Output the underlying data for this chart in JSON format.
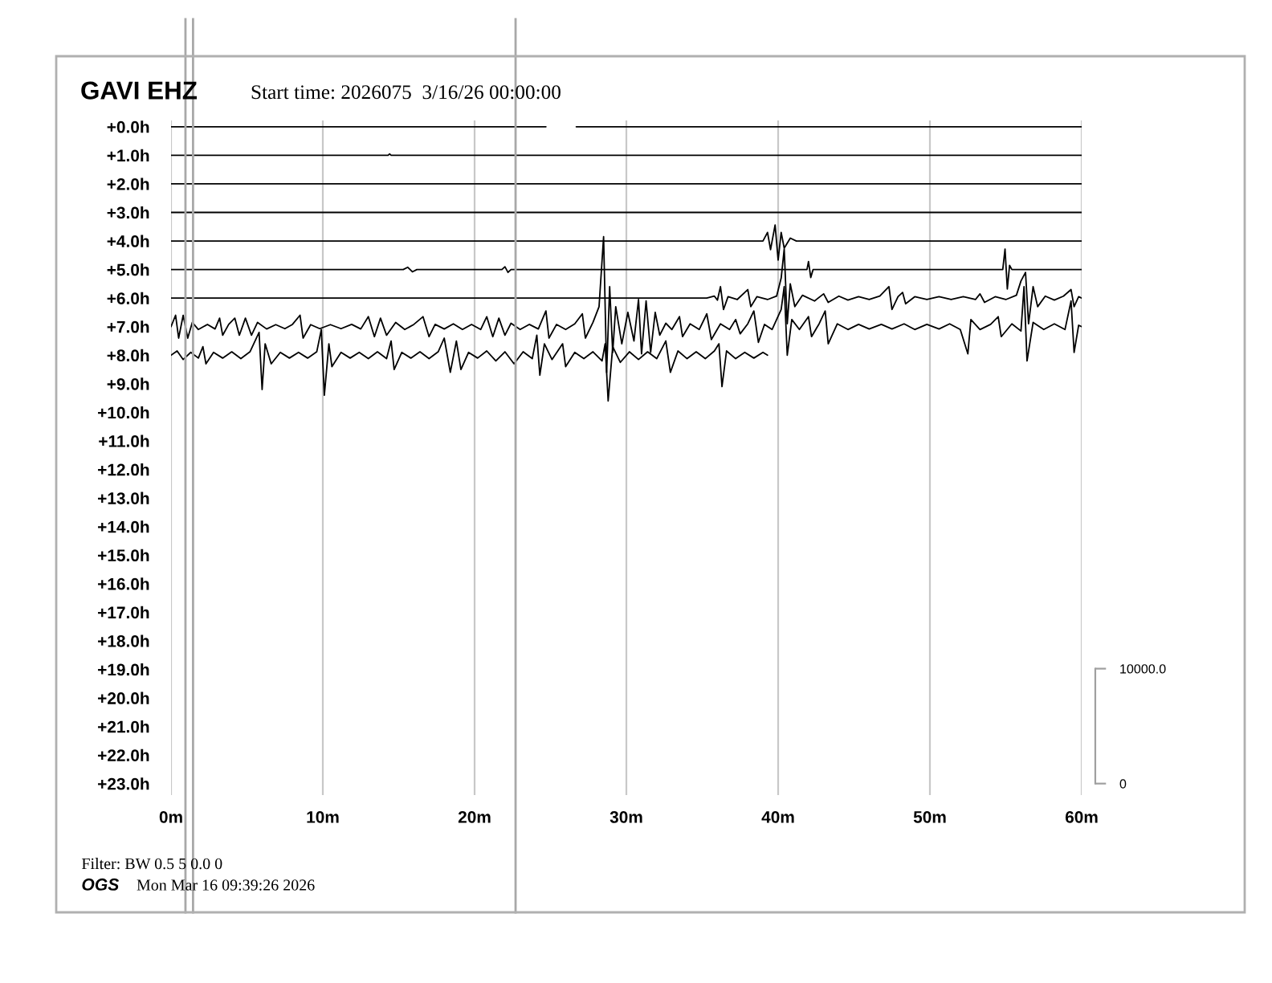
{
  "chart_data": {
    "type": "line",
    "title": "GAVI EHZ",
    "subtitle": "Start time: 2026075  3/16/26 00:00:00",
    "annotations": [
      "Filter: BW 0.5 5 0.0 0",
      "OGS",
      "Mon Mar 16 09:39:26 2026"
    ],
    "xlim": [
      0,
      60
    ],
    "xticks": [
      {
        "value": 0,
        "label": "0m"
      },
      {
        "value": 10,
        "label": "10m"
      },
      {
        "value": 20,
        "label": "20m"
      },
      {
        "value": 30,
        "label": "30m"
      },
      {
        "value": 40,
        "label": "40m"
      },
      {
        "value": 50,
        "label": "50m"
      },
      {
        "value": 60,
        "label": "60m"
      }
    ],
    "ylim": [
      23.4,
      -0.22
    ],
    "yticks": [
      {
        "value": 0,
        "label": "+0.0h"
      },
      {
        "value": 1,
        "label": "+1.0h"
      },
      {
        "value": 2,
        "label": "+2.0h"
      },
      {
        "value": 3,
        "label": "+3.0h"
      },
      {
        "value": 4,
        "label": "+4.0h"
      },
      {
        "value": 5,
        "label": "+5.0h"
      },
      {
        "value": 6,
        "label": "+6.0h"
      },
      {
        "value": 7,
        "label": "+7.0h"
      },
      {
        "value": 8,
        "label": "+8.0h"
      },
      {
        "value": 9,
        "label": "+9.0h"
      },
      {
        "value": 10,
        "label": "+10.0h"
      },
      {
        "value": 11,
        "label": "+11.0h"
      },
      {
        "value": 12,
        "label": "+12.0h"
      },
      {
        "value": 13,
        "label": "+13.0h"
      },
      {
        "value": 14,
        "label": "+14.0h"
      },
      {
        "value": 15,
        "label": "+15.0h"
      },
      {
        "value": 16,
        "label": "+16.0h"
      },
      {
        "value": 17,
        "label": "+17.0h"
      },
      {
        "value": 18,
        "label": "+18.0h"
      },
      {
        "value": 19,
        "label": "+19.0h"
      },
      {
        "value": 20,
        "label": "+20.0h"
      },
      {
        "value": 21,
        "label": "+21.0h"
      },
      {
        "value": 22,
        "label": "+22.0h"
      },
      {
        "value": 23,
        "label": "+23.0h"
      }
    ],
    "y2lim": [
      -1000,
      57700
    ],
    "y2ticks": [
      0,
      {
        "value": 10000,
        "label": "10000.0"
      }
    ],
    "grid": "x",
    "ref_lines": [
      {
        "axis": "x",
        "value": 0.95,
        "color": "#a8a8a8"
      },
      {
        "axis": "x",
        "value": 1.45,
        "color": "#a8a8a8"
      },
      {
        "axis": "x",
        "value": 22.7,
        "color": "#a8a8a8"
      }
    ],
    "series": [
      {
        "color": "#000000",
        "x": [
          0,
          24.7,
          25.7,
          26.7,
          60
        ],
        "values": [
          0,
          0,
          null,
          0,
          0
        ]
      },
      {
        "color": "#000000",
        "x": [
          0,
          14.3,
          14.4,
          14.5,
          60
        ],
        "values": [
          1,
          1,
          0.95,
          1,
          1
        ]
      },
      {
        "color": "#000000",
        "x": [
          0,
          60
        ],
        "values": [
          2,
          2
        ]
      },
      {
        "color": "#000000",
        "x": [
          0,
          60
        ],
        "values": [
          3,
          3
        ]
      },
      {
        "color": "#000000",
        "x": [
          0,
          39.0,
          39.3,
          39.5,
          39.8,
          40.0,
          40.2,
          40.4,
          40.8,
          41.2,
          60
        ],
        "values": [
          4,
          4,
          3.7,
          4.3,
          3.44,
          4.67,
          3.7,
          4.25,
          3.9,
          4.0,
          4
        ]
      },
      {
        "color": "#000000",
        "x": [
          0,
          15.3,
          15.6,
          15.9,
          16.2,
          21.8,
          22.0,
          22.2,
          22.4,
          41.9,
          42.0,
          42.15,
          42.3,
          54.8,
          54.95,
          55.1,
          55.25,
          55.4,
          60
        ],
        "values": [
          5,
          5,
          4.92,
          5.08,
          5,
          5,
          4.9,
          5.1,
          5,
          5,
          4.72,
          5.28,
          5,
          5,
          4.28,
          5.68,
          4.85,
          5,
          5
        ]
      },
      {
        "color": "#000000",
        "x": [
          0,
          35.3,
          35.8,
          36.0,
          36.2,
          36.4,
          36.7,
          37.3,
          38.0,
          38.2,
          38.6,
          39.3,
          39.9,
          40.2,
          40.4,
          40.6,
          40.8,
          41.1,
          41.6,
          42.4,
          43.0,
          43.3,
          44.0,
          44.6,
          45.3,
          46.0,
          46.7,
          47.3,
          47.5,
          47.9,
          48.2,
          48.4,
          49.0,
          49.8,
          50.6,
          51.4,
          52.2,
          53.0,
          53.3,
          53.6,
          54.3,
          55.0,
          55.7,
          56.0,
          56.3,
          56.5,
          56.8,
          57.1,
          57.6,
          58.2,
          58.8,
          59.3,
          59.5,
          59.8,
          60
        ],
        "values": [
          6,
          6,
          5.93,
          6.07,
          5.6,
          6.4,
          5.95,
          6.05,
          5.7,
          6.3,
          5.95,
          6.05,
          5.93,
          5.3,
          4.28,
          6.9,
          5.5,
          6.3,
          5.9,
          6.1,
          5.85,
          6.15,
          5.93,
          6.07,
          5.95,
          6.05,
          5.93,
          5.6,
          6.4,
          5.95,
          5.8,
          6.2,
          5.95,
          6.05,
          5.95,
          6.05,
          5.95,
          6.05,
          5.85,
          6.15,
          5.95,
          6.05,
          5.9,
          5.4,
          5.1,
          6.9,
          5.6,
          6.3,
          5.93,
          6.07,
          5.93,
          5.7,
          6.3,
          5.95,
          6
        ]
      },
      {
        "color": "#000000",
        "x": [
          0.0,
          0.3,
          0.5,
          0.8,
          1.1,
          1.4,
          1.8,
          2.4,
          2.9,
          3.2,
          3.4,
          3.8,
          4.2,
          4.5,
          4.9,
          5.3,
          5.7,
          6.3,
          6.9,
          7.5,
          8.0,
          8.5,
          8.7,
          9.2,
          9.8,
          10.5,
          11.2,
          11.9,
          12.5,
          13.0,
          13.4,
          13.8,
          14.2,
          14.8,
          15.4,
          16.0,
          16.6,
          17.0,
          17.4,
          18.0,
          18.6,
          19.2,
          19.8,
          20.4,
          20.8,
          21.2,
          21.6,
          22.0,
          22.4,
          23.0,
          23.6,
          24.2,
          24.7,
          24.9,
          25.4,
          26.0,
          26.6,
          27.1,
          27.3,
          27.8,
          28.2,
          28.5,
          28.7,
          28.9,
          29.1,
          29.3,
          29.7,
          30.1,
          30.5,
          30.8,
          31.0,
          31.3,
          31.6,
          31.9,
          32.2,
          32.6,
          33.0,
          33.5,
          33.7,
          34.2,
          34.8,
          35.3,
          35.6,
          36.2,
          36.8,
          37.2,
          37.5,
          38.0,
          38.4,
          38.7,
          39.1,
          39.6,
          40.2,
          40.4,
          40.6,
          40.9,
          41.4,
          42.0,
          42.2,
          42.7,
          43.1,
          43.3,
          43.9,
          44.6,
          45.3,
          46.0,
          46.8,
          47.5,
          48.3,
          49.0,
          49.8,
          50.6,
          51.3,
          52.0,
          52.5,
          52.7,
          53.3,
          54.0,
          54.5,
          54.7,
          55.4,
          56.0,
          56.2,
          56.4,
          56.8,
          57.5,
          58.2,
          58.9,
          59.3,
          59.5,
          59.8,
          60.0
        ],
        "values": [
          7.0,
          6.6,
          7.4,
          6.6,
          7.4,
          6.85,
          7.1,
          6.92,
          7.08,
          6.7,
          7.3,
          6.92,
          6.7,
          7.3,
          6.7,
          7.3,
          6.85,
          7.08,
          6.93,
          7.07,
          6.92,
          6.6,
          7.4,
          6.93,
          7.07,
          6.93,
          7.07,
          6.92,
          7.08,
          6.65,
          7.35,
          6.7,
          7.3,
          6.85,
          7.1,
          6.92,
          6.65,
          7.35,
          6.92,
          7.08,
          6.9,
          7.1,
          6.92,
          7.1,
          6.65,
          7.35,
          6.7,
          7.3,
          6.88,
          7.1,
          6.92,
          7.08,
          6.45,
          7.4,
          6.92,
          7.1,
          6.9,
          6.55,
          7.4,
          6.85,
          6.3,
          3.85,
          8.6,
          5.6,
          7.9,
          6.3,
          7.6,
          6.5,
          7.5,
          6.05,
          7.95,
          6.1,
          7.9,
          6.5,
          7.3,
          6.88,
          7.1,
          6.65,
          7.35,
          6.9,
          7.1,
          6.55,
          7.45,
          6.9,
          7.1,
          6.75,
          7.25,
          6.9,
          6.45,
          7.55,
          6.92,
          7.1,
          6.4,
          5.6,
          8.0,
          6.75,
          7.1,
          6.65,
          7.35,
          6.9,
          6.45,
          7.6,
          6.9,
          7.1,
          6.92,
          7.08,
          6.92,
          7.08,
          6.9,
          7.1,
          6.92,
          7.08,
          6.9,
          7.1,
          7.95,
          6.75,
          7.1,
          6.92,
          6.65,
          7.35,
          6.9,
          7.15,
          5.6,
          8.2,
          6.85,
          7.1,
          6.9,
          7.1,
          6.1,
          7.9,
          6.95,
          7.0
        ]
      },
      {
        "color": "#000000",
        "x": [
          0.0,
          0.4,
          0.8,
          1.3,
          1.8,
          2.1,
          2.3,
          2.8,
          3.4,
          4.0,
          4.6,
          5.2,
          5.8,
          6.0,
          6.2,
          6.6,
          7.2,
          7.8,
          8.4,
          9.0,
          9.6,
          9.9,
          10.1,
          10.4,
          10.6,
          11.2,
          11.8,
          12.4,
          13.0,
          13.6,
          14.2,
          14.5,
          14.7,
          15.2,
          15.8,
          16.4,
          17.0,
          17.6,
          18.0,
          18.4,
          18.8,
          19.1,
          19.6,
          20.2,
          20.8,
          21.4,
          22.0,
          22.6,
          23.2,
          23.8,
          24.1,
          24.3,
          24.6,
          25.1,
          25.8,
          26.0,
          26.6,
          27.2,
          27.8,
          28.4,
          28.6,
          28.8,
          29.1,
          29.6,
          30.2,
          30.8,
          31.4,
          32.0,
          32.6,
          32.9,
          33.4,
          34.0,
          34.6,
          35.2,
          35.8,
          36.1,
          36.3,
          36.6,
          37.2,
          37.8,
          38.4,
          39.0,
          39.3
        ],
        "values": [
          8.0,
          7.85,
          8.15,
          7.9,
          8.1,
          7.7,
          8.3,
          7.9,
          8.1,
          7.88,
          8.12,
          7.88,
          7.2,
          9.2,
          7.6,
          8.3,
          7.9,
          8.1,
          7.9,
          8.1,
          7.88,
          7.1,
          9.4,
          7.6,
          8.4,
          7.9,
          8.1,
          7.9,
          8.12,
          7.88,
          8.12,
          7.5,
          8.5,
          7.9,
          8.1,
          7.88,
          8.12,
          7.88,
          7.4,
          8.6,
          7.5,
          8.5,
          7.9,
          8.1,
          7.85,
          8.2,
          7.88,
          8.3,
          7.88,
          8.12,
          7.3,
          8.7,
          7.6,
          8.15,
          7.6,
          8.4,
          7.9,
          8.12,
          7.88,
          8.2,
          7.6,
          9.6,
          7.7,
          8.25,
          7.88,
          8.15,
          7.88,
          8.12,
          7.5,
          8.6,
          7.85,
          8.12,
          7.88,
          8.12,
          7.85,
          7.6,
          9.1,
          7.85,
          8.12,
          7.9,
          8.1,
          7.9,
          8.0
        ]
      }
    ]
  }
}
